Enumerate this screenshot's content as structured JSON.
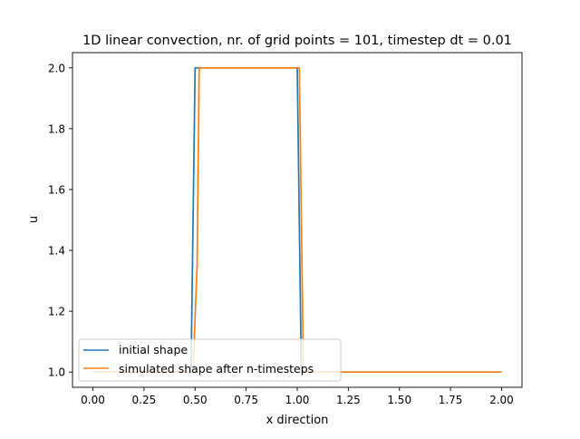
{
  "chart_data": {
    "type": "line",
    "title": "1D linear convection, nr. of grid points = 101, timestep dt = 0.01",
    "xlabel": "x direction",
    "ylabel": "u",
    "xlim": [
      -0.1,
      2.1
    ],
    "ylim": [
      0.95,
      2.05
    ],
    "x_ticks": [
      0.0,
      0.25,
      0.5,
      0.75,
      1.0,
      1.25,
      1.5,
      1.75,
      2.0
    ],
    "x_tick_labels": [
      "0.00",
      "0.25",
      "0.50",
      "0.75",
      "1.00",
      "1.25",
      "1.50",
      "1.75",
      "2.00"
    ],
    "y_ticks": [
      1.0,
      1.2,
      1.4,
      1.6,
      1.8,
      2.0
    ],
    "y_tick_labels": [
      "1.0",
      "1.2",
      "1.4",
      "1.6",
      "1.8",
      "2.0"
    ],
    "grid": false,
    "legend_position": "lower-left",
    "series": [
      {
        "name": "initial shape",
        "color": "#1f77b4",
        "x": [
          0.0,
          0.48,
          0.5,
          1.0,
          1.02,
          2.0
        ],
        "y": [
          1.0,
          1.0,
          2.0,
          2.0,
          1.0,
          1.0
        ]
      },
      {
        "name": "simulated shape after n-timesteps",
        "color": "#ff7f0e",
        "x": [
          0.0,
          0.49,
          0.51,
          0.52,
          1.0,
          1.01,
          1.03,
          2.0
        ],
        "y": [
          1.0,
          1.0,
          1.35,
          2.0,
          2.0,
          2.0,
          1.0,
          1.0
        ]
      }
    ]
  }
}
